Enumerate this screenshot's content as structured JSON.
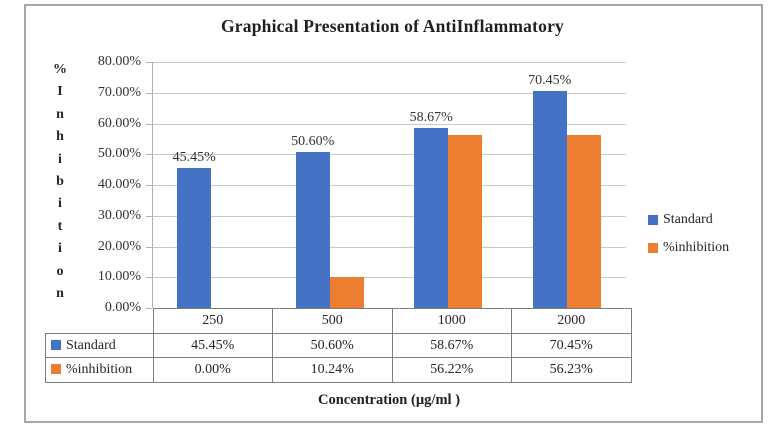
{
  "chart_data": {
    "type": "bar",
    "title": "Graphical Presentation of AntiInflammatory",
    "xlabel": "Concentration (µg/ml )",
    "ylabel": "% Inhibition",
    "ylabel_stacked": "%Inhibition",
    "categories": [
      "250",
      "500",
      "1000",
      "2000"
    ],
    "series": [
      {
        "name": "Standard",
        "color": "#4472C4",
        "values": [
          45.45,
          50.6,
          58.67,
          70.45
        ],
        "labels": [
          "45.45%",
          "50.60%",
          "58.67%",
          "70.45%"
        ],
        "show_point_labels": true
      },
      {
        "name": "%inhibition",
        "color": "#ED7D31",
        "values": [
          0.0,
          10.24,
          56.22,
          56.23
        ],
        "labels": [
          "0.00%",
          "10.24%",
          "56.22%",
          "56.23%"
        ],
        "show_point_labels": false
      }
    ],
    "ylim": [
      0,
      80
    ],
    "y_ticks": [
      "80.00%",
      "70.00%",
      "60.00%",
      "50.00%",
      "40.00%",
      "30.00%",
      "20.00%",
      "10.00%",
      "0.00%"
    ],
    "grid": true,
    "legend_position": "right",
    "data_table_shown": true
  }
}
